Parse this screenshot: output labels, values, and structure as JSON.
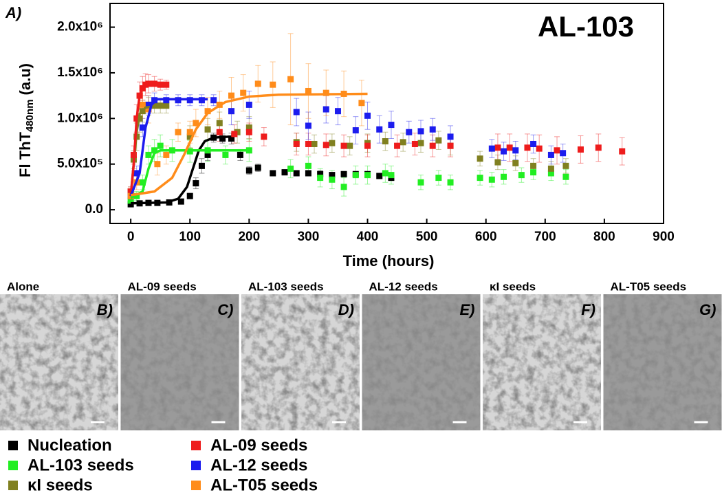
{
  "chart_data": {
    "type": "scatter",
    "panel_label": "A)",
    "title": "AL-103",
    "x_label": "Time (hours)",
    "y_label": "Fl ThT",
    "y_label_sub": "480nm",
    "y_label_unit": "(a.u)",
    "xlim": [
      -35,
      900
    ],
    "ylim": [
      -150000,
      2260000
    ],
    "xticks": [
      0,
      100,
      200,
      300,
      400,
      500,
      600,
      700,
      800,
      900
    ],
    "yticks": [
      {
        "value": 0,
        "label": "0.0"
      },
      {
        "value": 500000,
        "label": "5.0x10⁵"
      },
      {
        "value": 1000000,
        "label": "1.0x10⁶"
      },
      {
        "value": 1500000,
        "label": "1.5x10⁶"
      },
      {
        "value": 2000000,
        "label": "2.0x10⁶"
      }
    ],
    "series": [
      {
        "name": "Nucleation",
        "color": "#000000",
        "x": [
          0,
          15,
          30,
          45,
          65,
          85,
          100,
          110,
          120,
          130,
          140,
          155,
          170,
          185,
          200,
          215,
          240,
          260,
          280,
          300,
          320,
          340,
          360,
          380,
          400,
          420,
          440
        ],
        "values": [
          60000,
          70000,
          75000,
          75000,
          80000,
          90000,
          150000,
          290000,
          480000,
          600000,
          790000,
          780000,
          780000,
          600000,
          430000,
          460000,
          400000,
          410000,
          400000,
          400000,
          390000,
          380000,
          390000,
          390000,
          390000,
          370000,
          350000
        ],
        "errors": [
          20000,
          20000,
          20000,
          20000,
          20000,
          20000,
          30000,
          60000,
          80000,
          60000,
          50000,
          50000,
          60000,
          60000,
          40000,
          40000,
          30000,
          30000,
          30000,
          30000,
          40000,
          30000,
          30000,
          30000,
          30000,
          30000,
          30000
        ],
        "fit": {
          "x": [
            0,
            60,
            80,
            95,
            105,
            115,
            125,
            140,
            165
          ],
          "values": [
            70000,
            80000,
            120000,
            250000,
            450000,
            650000,
            750000,
            790000,
            800000
          ]
        }
      },
      {
        "name": "AL-103 seeds",
        "color": "#22ee22",
        "x": [
          0,
          10,
          20,
          30,
          40,
          50,
          70,
          100,
          130,
          160,
          200,
          270,
          300,
          320,
          340,
          360,
          380,
          400,
          430,
          440,
          490,
          520,
          540,
          590,
          610,
          630,
          660,
          680,
          710,
          735
        ],
        "values": [
          100000,
          150000,
          300000,
          600000,
          650000,
          700000,
          650000,
          640000,
          650000,
          600000,
          650000,
          450000,
          480000,
          350000,
          330000,
          250000,
          380000,
          380000,
          400000,
          380000,
          300000,
          350000,
          300000,
          350000,
          330000,
          360000,
          380000,
          410000,
          400000,
          360000
        ],
        "errors": [
          30000,
          50000,
          80000,
          100000,
          120000,
          120000,
          120000,
          120000,
          120000,
          100000,
          120000,
          100000,
          100000,
          100000,
          100000,
          100000,
          100000,
          100000,
          100000,
          100000,
          80000,
          80000,
          80000,
          80000,
          80000,
          80000,
          80000,
          80000,
          80000,
          80000
        ],
        "fit": {
          "x": [
            0,
            20,
            30,
            40,
            50,
            200
          ],
          "values": [
            130000,
            200000,
            450000,
            620000,
            650000,
            650000
          ]
        }
      },
      {
        "name": "κI seeds",
        "color": "#808020",
        "x": [
          0,
          5,
          10,
          15,
          20,
          30,
          40,
          50,
          60,
          100,
          130,
          150,
          180,
          200,
          280,
          310,
          340,
          370,
          400,
          430,
          460,
          490,
          520,
          540,
          590,
          620,
          650,
          680,
          710,
          735
        ],
        "values": [
          200000,
          550000,
          800000,
          1000000,
          1080000,
          1130000,
          1140000,
          1140000,
          1140000,
          800000,
          880000,
          950000,
          850000,
          900000,
          740000,
          720000,
          730000,
          700000,
          730000,
          750000,
          740000,
          730000,
          760000,
          700000,
          560000,
          520000,
          510000,
          480000,
          450000,
          480000
        ],
        "errors": [
          50000,
          100000,
          150000,
          150000,
          120000,
          100000,
          80000,
          80000,
          80000,
          120000,
          120000,
          120000,
          120000,
          120000,
          100000,
          100000,
          100000,
          100000,
          100000,
          100000,
          100000,
          100000,
          100000,
          100000,
          80000,
          80000,
          80000,
          80000,
          80000,
          80000
        ],
        "fit": {
          "x": [
            0,
            5,
            10,
            15,
            25,
            40,
            65
          ],
          "values": [
            150000,
            500000,
            850000,
            1050000,
            1120000,
            1130000,
            1130000
          ]
        }
      },
      {
        "name": "AL-09 seeds",
        "color": "#ee1c1c",
        "x": [
          0,
          5,
          10,
          15,
          20,
          25,
          30,
          40,
          50,
          60,
          150,
          175,
          200,
          225,
          280,
          300,
          330,
          360,
          400,
          450,
          480,
          510,
          540,
          620,
          640,
          670,
          690,
          720,
          760,
          790,
          830
        ],
        "values": [
          200000,
          600000,
          1000000,
          1250000,
          1330000,
          1370000,
          1380000,
          1380000,
          1370000,
          1370000,
          850000,
          830000,
          850000,
          800000,
          720000,
          720000,
          710000,
          700000,
          700000,
          700000,
          720000,
          700000,
          700000,
          680000,
          680000,
          680000,
          670000,
          650000,
          660000,
          680000,
          640000
        ],
        "errors": [
          50000,
          100000,
          150000,
          150000,
          130000,
          120000,
          100000,
          80000,
          60000,
          50000,
          100000,
          100000,
          100000,
          100000,
          120000,
          120000,
          120000,
          120000,
          120000,
          120000,
          120000,
          120000,
          120000,
          150000,
          150000,
          150000,
          150000,
          150000,
          150000,
          150000,
          150000
        ],
        "fit": {
          "x": [
            0,
            5,
            10,
            15,
            20,
            30,
            40,
            60
          ],
          "values": [
            150000,
            500000,
            1000000,
            1250000,
            1330000,
            1370000,
            1380000,
            1380000
          ]
        }
      },
      {
        "name": "AL-12 seeds",
        "color": "#1c1cee",
        "x": [
          0,
          10,
          20,
          30,
          40,
          60,
          80,
          100,
          120,
          140,
          170,
          200,
          280,
          300,
          330,
          350,
          380,
          400,
          420,
          440,
          470,
          490,
          510,
          540,
          610,
          630,
          650,
          680,
          710,
          730
        ],
        "values": [
          150000,
          400000,
          900000,
          1150000,
          1200000,
          1200000,
          1200000,
          1200000,
          1200000,
          1200000,
          1080000,
          1150000,
          1070000,
          920000,
          1100000,
          1080000,
          870000,
          1030000,
          880000,
          930000,
          850000,
          860000,
          880000,
          800000,
          670000,
          640000,
          650000,
          720000,
          600000,
          620000
        ],
        "errors": [
          30000,
          80000,
          100000,
          100000,
          80000,
          60000,
          60000,
          60000,
          60000,
          60000,
          150000,
          150000,
          150000,
          150000,
          150000,
          150000,
          150000,
          150000,
          150000,
          150000,
          120000,
          120000,
          120000,
          120000,
          100000,
          100000,
          100000,
          100000,
          100000,
          100000
        ],
        "fit": {
          "x": [
            0,
            15,
            25,
            35,
            45,
            130
          ],
          "values": [
            150000,
            400000,
            900000,
            1150000,
            1210000,
            1210000
          ]
        }
      },
      {
        "name": "AL-T05 seeds",
        "color": "#ff8c1a",
        "x": [
          0,
          10,
          20,
          30,
          45,
          60,
          80,
          100,
          110,
          130,
          150,
          170,
          190,
          215,
          240,
          270,
          300,
          330,
          360,
          390
        ],
        "values": [
          150000,
          300000,
          1150000,
          1100000,
          500000,
          600000,
          850000,
          850000,
          950000,
          1080000,
          1150000,
          1250000,
          1280000,
          1380000,
          1370000,
          1430000,
          1300000,
          1280000,
          1270000,
          1170000
        ],
        "errors": [
          50000,
          80000,
          150000,
          150000,
          120000,
          100000,
          100000,
          120000,
          150000,
          150000,
          150000,
          200000,
          200000,
          200000,
          250000,
          500000,
          300000,
          250000,
          250000,
          250000
        ],
        "fit": {
          "x": [
            0,
            40,
            70,
            90,
            110,
            130,
            160,
            200,
            250,
            400
          ],
          "values": [
            160000,
            200000,
            350000,
            600000,
            880000,
            1060000,
            1180000,
            1240000,
            1260000,
            1270000
          ]
        }
      }
    ]
  },
  "panels": [
    {
      "title": "Alone",
      "label": "B)"
    },
    {
      "title": "AL-09  seeds",
      "label": "C)"
    },
    {
      "title": "AL-103 seeds",
      "label": "D)"
    },
    {
      "title": "AL-12 seeds",
      "label": "E)"
    },
    {
      "title": "κI  seeds",
      "label": "F)"
    },
    {
      "title": "AL-T05 seeds",
      "label": "G)"
    }
  ]
}
